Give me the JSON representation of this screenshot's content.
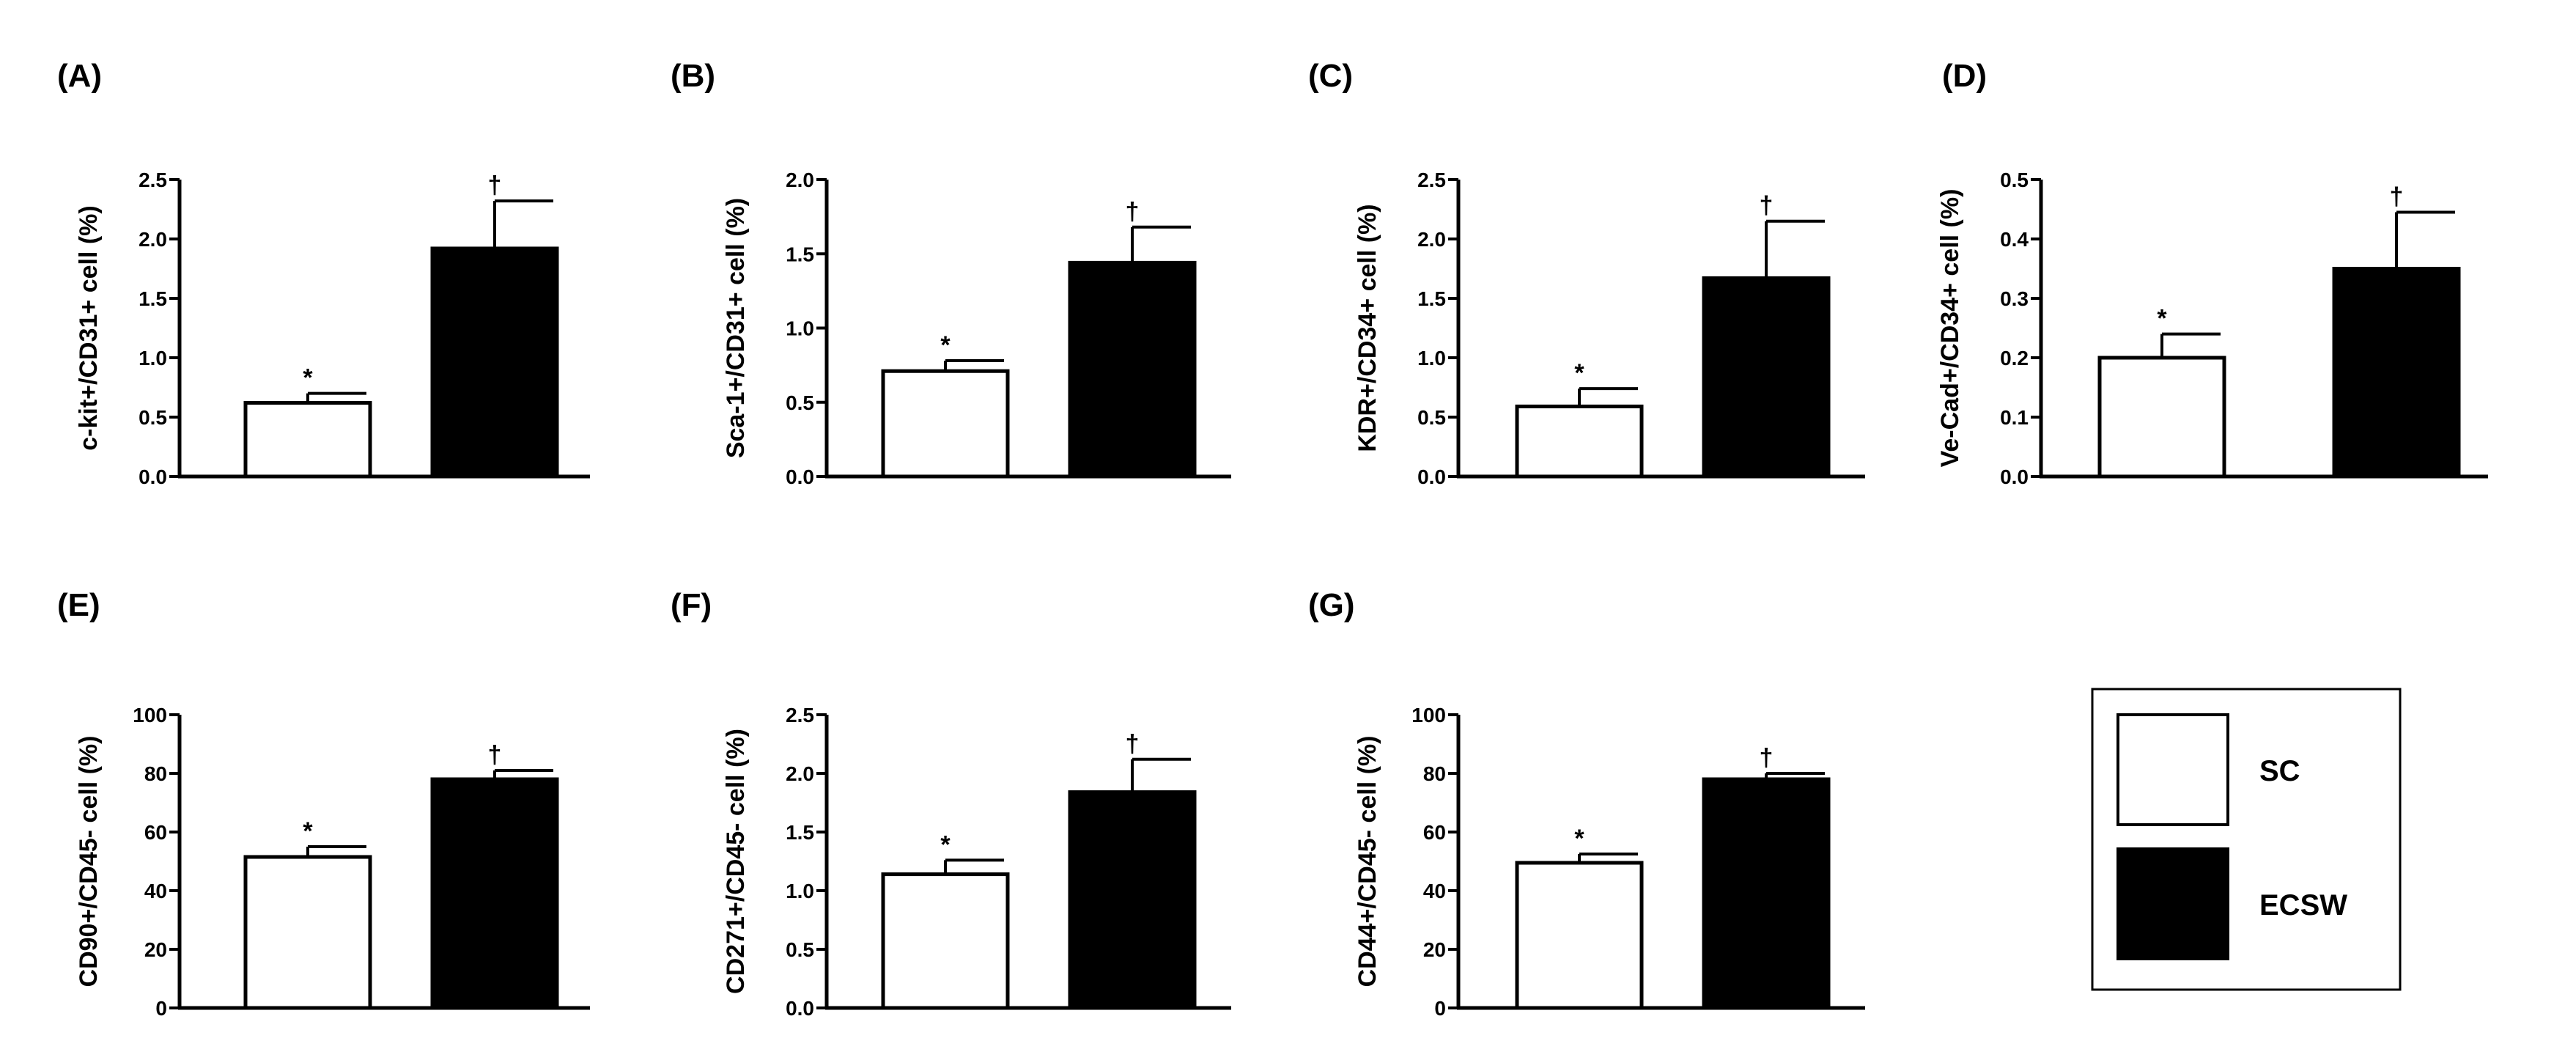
{
  "colors": {
    "SC": "#ffffff",
    "ECSW": "#000000",
    "axis": "#000000"
  },
  "legend": {
    "items": [
      {
        "label": "SC",
        "color": "#ffffff"
      },
      {
        "label": "ECSW",
        "color": "#000000"
      }
    ]
  },
  "chart_data": [
    {
      "panel": "(A)",
      "type": "bar",
      "categories": [
        "SC",
        "ECSW"
      ],
      "values": [
        0.62,
        1.92
      ],
      "errors": [
        0.08,
        0.4
      ],
      "annotations": [
        "*",
        "†"
      ],
      "ylabel": "c-kit+/CD31+ cell (%)",
      "ylim": [
        0,
        2.5
      ],
      "yticks": [
        "0.0",
        "0.5",
        "1.0",
        "1.5",
        "2.0",
        "2.5"
      ]
    },
    {
      "panel": "(B)",
      "type": "bar",
      "categories": [
        "SC",
        "ECSW"
      ],
      "values": [
        0.71,
        1.44
      ],
      "errors": [
        0.07,
        0.24
      ],
      "annotations": [
        "*",
        "†"
      ],
      "ylabel": "Sca-1+/CD31+ cell (%)",
      "ylim": [
        0,
        2.0
      ],
      "yticks": [
        "0.0",
        "0.5",
        "1.0",
        "1.5",
        "2.0"
      ]
    },
    {
      "panel": "(C)",
      "type": "bar",
      "categories": [
        "SC",
        "ECSW"
      ],
      "values": [
        0.59,
        1.67
      ],
      "errors": [
        0.15,
        0.48
      ],
      "annotations": [
        "*",
        "†"
      ],
      "ylabel": "KDR+/CD34+ cell (%)",
      "ylim": [
        0,
        2.5
      ],
      "yticks": [
        "0.0",
        "0.5",
        "1.0",
        "1.5",
        "2.0",
        "2.5"
      ]
    },
    {
      "panel": "(D)",
      "type": "bar",
      "categories": [
        "SC",
        "ECSW"
      ],
      "values": [
        0.2,
        0.35
      ],
      "errors": [
        0.04,
        0.095
      ],
      "annotations": [
        "*",
        "†"
      ],
      "ylabel": "Ve-Cad+/CD34+ cell (%)",
      "ylim": [
        0,
        0.5
      ],
      "yticks": [
        "0.0",
        "0.1",
        "0.2",
        "0.3",
        "0.4",
        "0.5"
      ]
    },
    {
      "panel": "(E)",
      "type": "bar",
      "categories": [
        "SC",
        "ECSW"
      ],
      "values": [
        51.5,
        78
      ],
      "errors": [
        3.5,
        3
      ],
      "annotations": [
        "*",
        "†"
      ],
      "ylabel": "CD90+/CD45- cell (%)",
      "ylim": [
        0,
        100
      ],
      "yticks": [
        "0",
        "20",
        "40",
        "60",
        "80",
        "100"
      ]
    },
    {
      "panel": "(F)",
      "type": "bar",
      "categories": [
        "SC",
        "ECSW"
      ],
      "values": [
        1.14,
        1.84
      ],
      "errors": [
        0.12,
        0.28
      ],
      "annotations": [
        "*",
        "†"
      ],
      "ylabel": "CD271+/CD45- cell (%)",
      "ylim": [
        0,
        2.5
      ],
      "yticks": [
        "0.0",
        "0.5",
        "1.0",
        "1.5",
        "2.0",
        "2.5"
      ]
    },
    {
      "panel": "(G)",
      "type": "bar",
      "categories": [
        "SC",
        "ECSW"
      ],
      "values": [
        49.5,
        78
      ],
      "errors": [
        3,
        2
      ],
      "annotations": [
        "*",
        "†"
      ],
      "ylabel": "CD44+/CD45- cell (%)",
      "ylim": [
        0,
        100
      ],
      "yticks": [
        "0",
        "20",
        "40",
        "60",
        "80",
        "100"
      ]
    }
  ]
}
